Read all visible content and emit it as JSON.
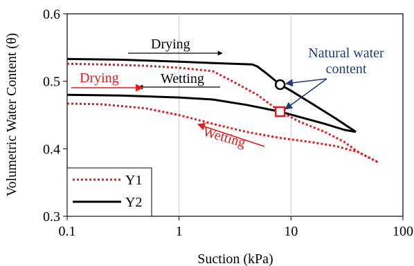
{
  "chart_data": {
    "type": "line",
    "title": "",
    "xlabel": "Suction (kPa)",
    "ylabel": "Volumetric  Water Content (θ)",
    "x_scale": "log",
    "xlim": [
      0.1,
      100
    ],
    "ylim": [
      0.3,
      0.6
    ],
    "x_ticks": [
      0.1,
      1,
      10,
      100
    ],
    "x_tick_labels": [
      "0.1",
      "1",
      "10",
      "100"
    ],
    "y_ticks": [
      0.3,
      0.4,
      0.5,
      0.6
    ],
    "y_tick_labels": [
      "0.3",
      "0.4",
      "0.5",
      "0.6"
    ],
    "grid": "vertical decade lines only",
    "legend_position": "bottom-left",
    "colors": {
      "Y1": "#e8191c",
      "Y2": "#000000",
      "annotation_red": "#e8191c",
      "annotation_blue": "#1f3a7a",
      "grid": "#c8c8c8"
    },
    "series": [
      {
        "name": "Y1",
        "style": "dotted",
        "color": "#e8191c",
        "branches": [
          {
            "path": "drying",
            "points": [
              [
                0.1,
                0.526
              ],
              [
                0.2,
                0.525
              ],
              [
                0.5,
                0.523
              ],
              [
                1,
                0.52
              ],
              [
                2,
                0.515
              ],
              [
                3,
                0.5
              ],
              [
                5,
                0.48
              ],
              [
                8,
                0.455
              ],
              [
                12,
                0.44
              ],
              [
                20,
                0.425
              ],
              [
                30,
                0.41
              ],
              [
                40,
                0.395
              ],
              [
                60,
                0.38
              ]
            ]
          },
          {
            "path": "wetting",
            "points": [
              [
                0.1,
                0.467
              ],
              [
                0.2,
                0.466
              ],
              [
                0.5,
                0.46
              ],
              [
                1,
                0.45
              ],
              [
                2,
                0.437
              ],
              [
                4,
                0.425
              ],
              [
                8,
                0.416
              ],
              [
                15,
                0.41
              ],
              [
                25,
                0.404
              ],
              [
                40,
                0.395
              ],
              [
                60,
                0.38
              ]
            ]
          }
        ]
      },
      {
        "name": "Y2",
        "style": "solid",
        "color": "#000000",
        "branches": [
          {
            "path": "drying",
            "points": [
              [
                0.1,
                0.533
              ],
              [
                0.3,
                0.532
              ],
              [
                1,
                0.529
              ],
              [
                2,
                0.527
              ],
              [
                3,
                0.526
              ],
              [
                4.5,
                0.525
              ],
              [
                5,
                0.522
              ],
              [
                6,
                0.512
              ],
              [
                8,
                0.495
              ],
              [
                10,
                0.486
              ],
              [
                15,
                0.468
              ],
              [
                25,
                0.445
              ],
              [
                38,
                0.425
              ]
            ]
          },
          {
            "path": "wetting",
            "points": [
              [
                0.1,
                0.48
              ],
              [
                0.3,
                0.479
              ],
              [
                1,
                0.476
              ],
              [
                2,
                0.473
              ],
              [
                4,
                0.465
              ],
              [
                8,
                0.455
              ],
              [
                12,
                0.447
              ],
              [
                20,
                0.437
              ],
              [
                30,
                0.428
              ],
              [
                38,
                0.425
              ]
            ]
          }
        ]
      }
    ],
    "natural_water_content_points": [
      {
        "series": "Y2",
        "marker": "circle",
        "x": 8,
        "y": 0.495
      },
      {
        "series": "Y1",
        "marker": "square",
        "x": 8,
        "y": 0.455
      }
    ],
    "annotations": [
      {
        "text": "Drying",
        "color": "#000000",
        "arrow": "right"
      },
      {
        "text": "Wetting",
        "color": "#000000",
        "arrow": "left"
      },
      {
        "text": "Drying",
        "color": "#e8191c",
        "arrow": "right"
      },
      {
        "text": "Wetting",
        "color": "#e8191c",
        "arrow": "up-left"
      },
      {
        "text": "Natural water content",
        "color": "#1f3a7a",
        "arrow": "to both points"
      }
    ]
  },
  "labels": {
    "drying_black": "Drying",
    "wetting_black": "Wetting",
    "drying_red": "Drying",
    "wetting_red": "Wetting",
    "natural_line1": "Natural water",
    "natural_line2": "content",
    "legend_y1": "Y1",
    "legend_y2": "Y2"
  }
}
